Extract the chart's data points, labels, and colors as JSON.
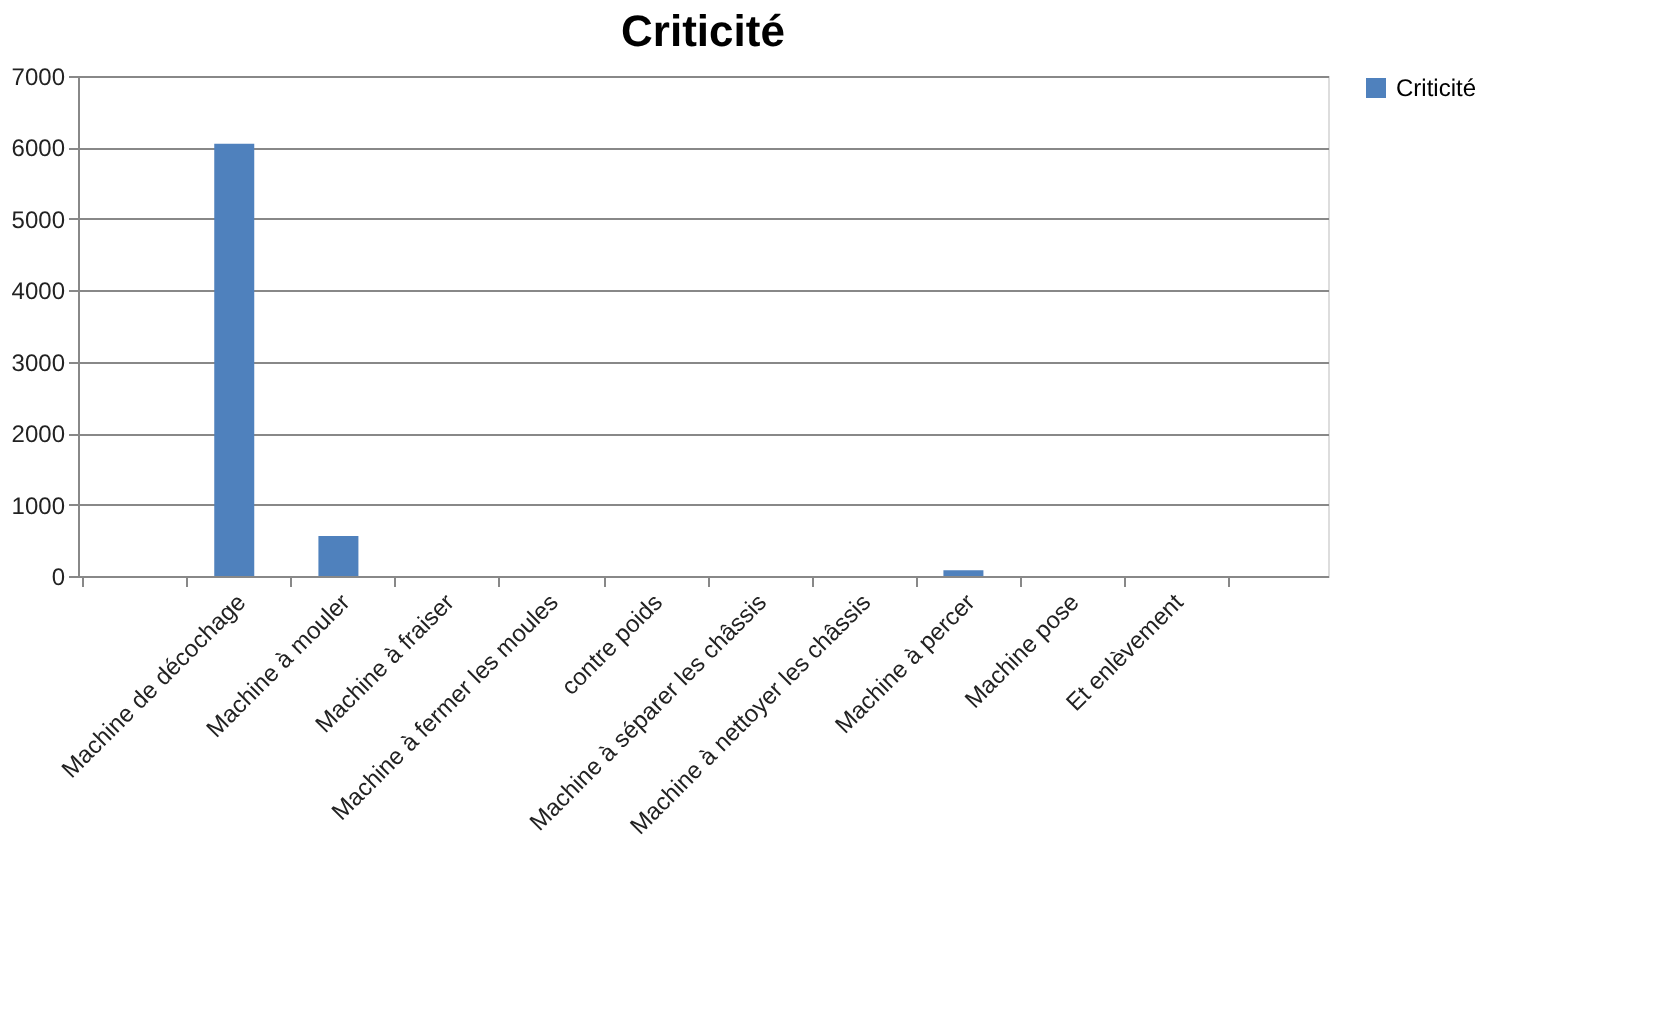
{
  "chart_data": {
    "type": "bar",
    "title": "Criticité",
    "categories": [
      null,
      "Machine de décochage",
      "Machine à mouler",
      "Machine à fraiser",
      "Machine à fermer les moules",
      "contre poids",
      "Machine à séparer les châssis",
      "Machine à nettoyer les châssis",
      "Machine à percer",
      "Machine  pose",
      "Et enlèvement",
      null
    ],
    "series": [
      {
        "name": "Criticité",
        "color": "#4f81bd",
        "values": [
          0,
          6050,
          560,
          0,
          0,
          0,
          0,
          0,
          80,
          0,
          0,
          0
        ]
      }
    ],
    "ylim": [
      0,
      7000
    ],
    "yticks": [
      0,
      1000,
      2000,
      3000,
      4000,
      5000,
      6000,
      7000
    ],
    "grid": "y",
    "legend": "right"
  }
}
